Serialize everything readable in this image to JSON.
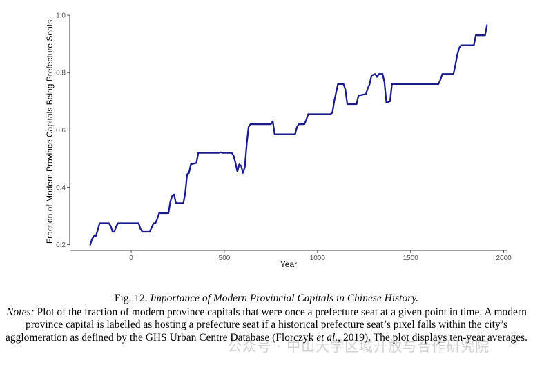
{
  "chart_data": {
    "type": "line",
    "xlabel": "Year",
    "ylabel": "Fraction of Modern Province Capitals Being Prefecture Seats",
    "xlim": [
      -330,
      2020
    ],
    "ylim": [
      0.18,
      1.005
    ],
    "xticks": [
      0,
      500,
      1000,
      1500,
      2000
    ],
    "yticks": [
      0.2,
      0.4,
      0.6,
      0.8,
      1.0
    ],
    "xtick_labels": [
      "0",
      "500",
      "1000",
      "1500",
      "2000"
    ],
    "ytick_labels": [
      "0.2",
      "0.4",
      "0.6",
      "0.8",
      "1.0"
    ],
    "grid": false,
    "series": [
      {
        "color": "#1a1a8c",
        "points": [
          [
            -220,
            0.2
          ],
          [
            -210,
            0.22
          ],
          [
            -200,
            0.23
          ],
          [
            -190,
            0.23
          ],
          [
            -180,
            0.25
          ],
          [
            -170,
            0.275
          ],
          [
            -120,
            0.275
          ],
          [
            -110,
            0.265
          ],
          [
            -100,
            0.245
          ],
          [
            -90,
            0.245
          ],
          [
            -80,
            0.265
          ],
          [
            -70,
            0.275
          ],
          [
            40,
            0.275
          ],
          [
            50,
            0.255
          ],
          [
            60,
            0.245
          ],
          [
            100,
            0.245
          ],
          [
            110,
            0.26
          ],
          [
            120,
            0.275
          ],
          [
            130,
            0.275
          ],
          [
            140,
            0.29
          ],
          [
            150,
            0.31
          ],
          [
            200,
            0.31
          ],
          [
            210,
            0.35
          ],
          [
            220,
            0.37
          ],
          [
            230,
            0.375
          ],
          [
            240,
            0.345
          ],
          [
            280,
            0.345
          ],
          [
            290,
            0.38
          ],
          [
            300,
            0.445
          ],
          [
            310,
            0.45
          ],
          [
            320,
            0.48
          ],
          [
            350,
            0.485
          ],
          [
            360,
            0.52
          ],
          [
            470,
            0.52
          ],
          [
            480,
            0.522
          ],
          [
            490,
            0.52
          ],
          [
            540,
            0.52
          ],
          [
            550,
            0.51
          ],
          [
            560,
            0.485
          ],
          [
            570,
            0.455
          ],
          [
            580,
            0.48
          ],
          [
            590,
            0.475
          ],
          [
            600,
            0.45
          ],
          [
            610,
            0.47
          ],
          [
            620,
            0.55
          ],
          [
            630,
            0.61
          ],
          [
            640,
            0.62
          ],
          [
            750,
            0.62
          ],
          [
            760,
            0.63
          ],
          [
            770,
            0.585
          ],
          [
            880,
            0.585
          ],
          [
            890,
            0.61
          ],
          [
            900,
            0.62
          ],
          [
            930,
            0.62
          ],
          [
            940,
            0.635
          ],
          [
            950,
            0.655
          ],
          [
            1070,
            0.655
          ],
          [
            1080,
            0.66
          ],
          [
            1090,
            0.7
          ],
          [
            1100,
            0.73
          ],
          [
            1110,
            0.76
          ],
          [
            1140,
            0.76
          ],
          [
            1150,
            0.74
          ],
          [
            1160,
            0.69
          ],
          [
            1210,
            0.69
          ],
          [
            1220,
            0.72
          ],
          [
            1260,
            0.725
          ],
          [
            1270,
            0.745
          ],
          [
            1280,
            0.76
          ],
          [
            1290,
            0.79
          ],
          [
            1310,
            0.795
          ],
          [
            1320,
            0.785
          ],
          [
            1330,
            0.795
          ],
          [
            1350,
            0.795
          ],
          [
            1360,
            0.765
          ],
          [
            1370,
            0.695
          ],
          [
            1390,
            0.7
          ],
          [
            1400,
            0.76
          ],
          [
            1650,
            0.76
          ],
          [
            1660,
            0.775
          ],
          [
            1670,
            0.795
          ],
          [
            1730,
            0.795
          ],
          [
            1740,
            0.825
          ],
          [
            1750,
            0.86
          ],
          [
            1760,
            0.885
          ],
          [
            1770,
            0.895
          ],
          [
            1840,
            0.895
          ],
          [
            1850,
            0.93
          ],
          [
            1900,
            0.93
          ],
          [
            1910,
            0.965
          ]
        ]
      }
    ]
  },
  "caption": {
    "label": "Fig. 12.",
    "title": "Importance of Modern Provincial Capitals in Chinese History.",
    "notes_label": "Notes:",
    "notes_1": "Plot of the fraction of modern province capitals that were once a prefecture seat at a given point in time. A modern province capital is labelled as hosting a prefecture seat if a historical prefecture seat’s pixel falls within the city’s agglomeration as defined by the GHS Urban Centre Database (Florczyk ",
    "notes_et_al": "et al.",
    "notes_2": ", 2019). The plot displays ten-year averages."
  },
  "watermark": "公众号 · 中山大学区域开放与合作研究院"
}
